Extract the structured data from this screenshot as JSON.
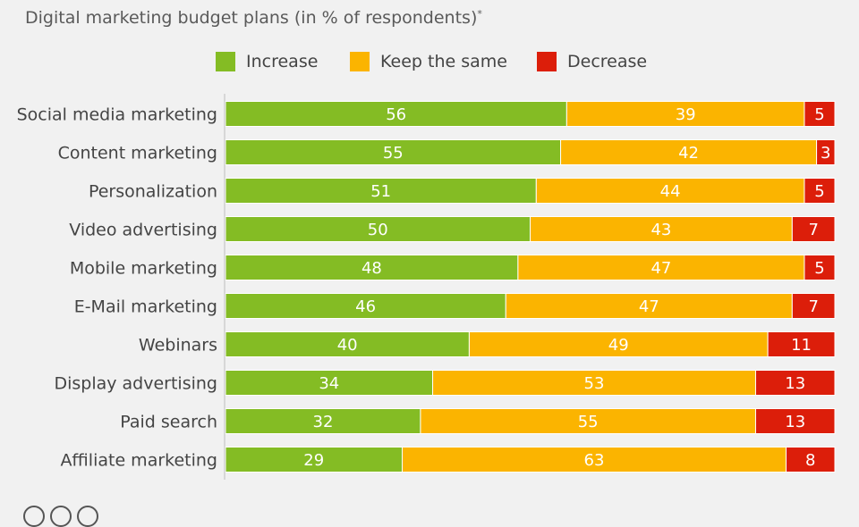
{
  "subtitle": "Digital marketing budget plans (in % of respondents)",
  "subtitle_mark": "*",
  "legend": [
    {
      "label": "Increase",
      "color": "#84bc24"
    },
    {
      "label": "Keep the same",
      "color": "#fbb400"
    },
    {
      "label": "Decrease",
      "color": "#dc1e0a"
    }
  ],
  "chart_data": {
    "type": "bar",
    "orientation": "horizontal",
    "stacked": true,
    "categories": [
      "Social media marketing",
      "Content marketing",
      "Personalization",
      "Video advertising",
      "Mobile marketing",
      "E-Mail marketing",
      "Webinars",
      "Display advertising",
      "Paid search",
      "Affiliate marketing"
    ],
    "series": [
      {
        "name": "Increase",
        "color": "#84bc24",
        "values": [
          56,
          55,
          51,
          50,
          48,
          46,
          40,
          34,
          32,
          29
        ]
      },
      {
        "name": "Keep the same",
        "color": "#fbb400",
        "values": [
          39,
          42,
          44,
          43,
          47,
          47,
          49,
          53,
          55,
          63
        ]
      },
      {
        "name": "Decrease",
        "color": "#dc1e0a",
        "values": [
          5,
          3,
          5,
          7,
          5,
          7,
          11,
          13,
          13,
          8
        ]
      }
    ],
    "xlim": [
      0,
      100
    ],
    "legend_position": "top",
    "grid": false,
    "data_labels": true
  }
}
